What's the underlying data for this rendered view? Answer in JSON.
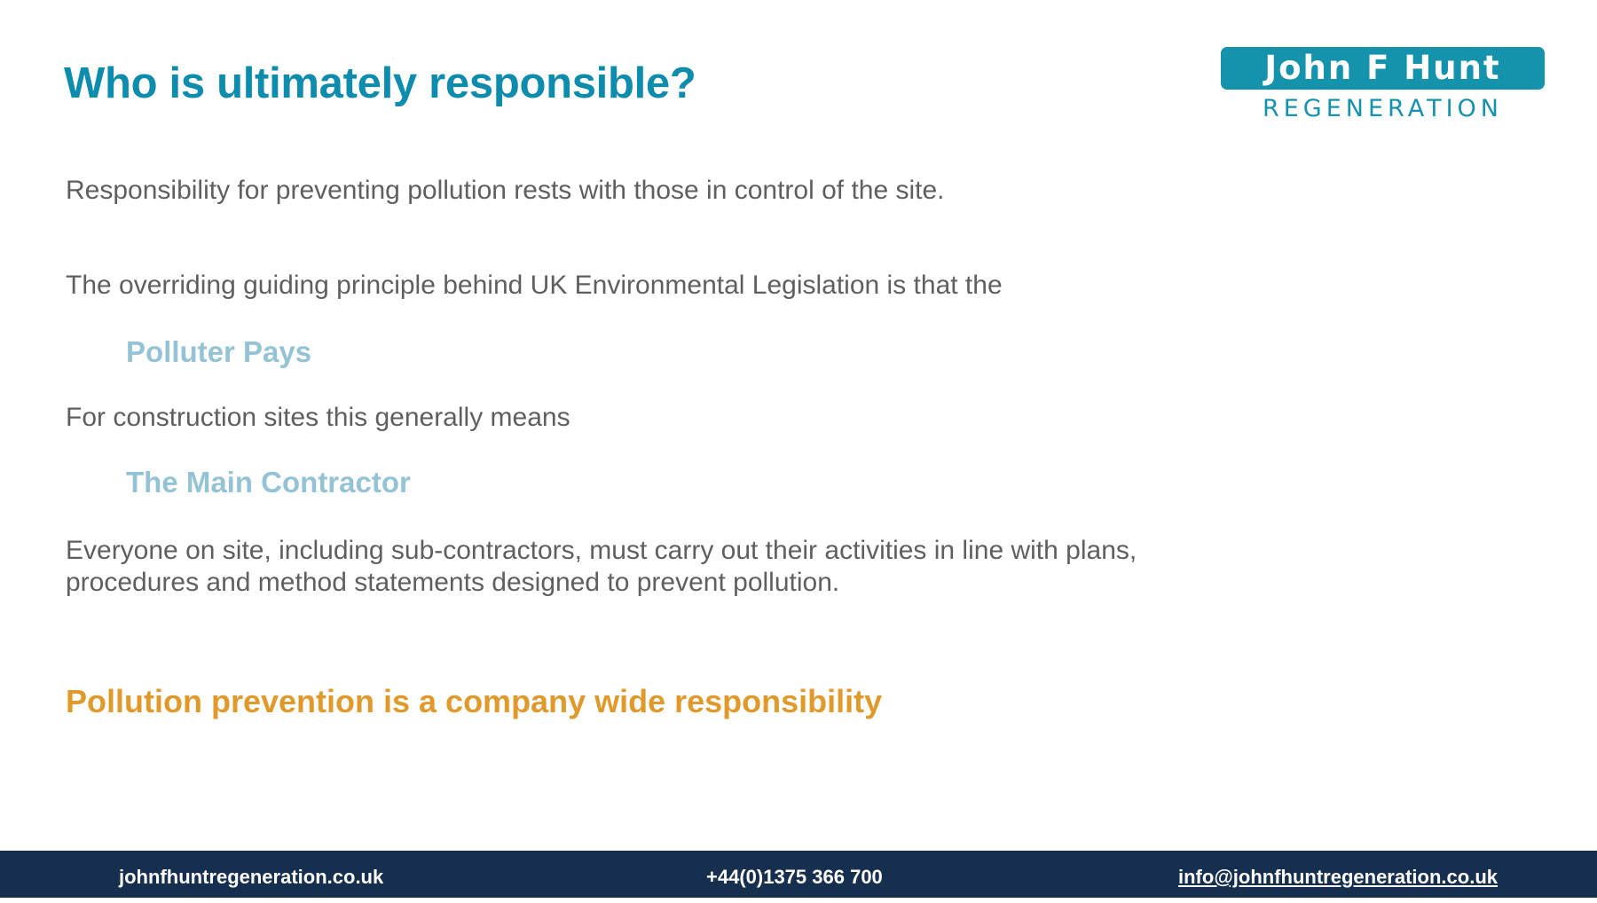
{
  "slide": {
    "title": "Who is ultimately responsible?"
  },
  "logo": {
    "line1": "John F Hunt",
    "line2": "REGENERATION"
  },
  "content": {
    "para1": "Responsibility for preventing pollution rests with those in control of the site.",
    "para2": "The overriding guiding principle behind UK Environmental Legislation is that the",
    "highlight1": "Polluter Pays",
    "para3": "For construction sites this generally means",
    "highlight2": "The Main Contractor",
    "para4": "Everyone on site, including sub-contractors, must carry out their activities in line with plans, procedures and method statements designed to prevent pollution.",
    "callout": "Pollution prevention is a company wide responsibility"
  },
  "footer": {
    "website": "johnfhuntregeneration.co.uk",
    "phone": "+44(0)1375 366 700",
    "email": "info@johnfhuntregeneration.co.uk"
  },
  "colors": {
    "title": "#0e8cae",
    "body_text": "#5f5f5f",
    "highlight": "#94c3d6",
    "callout": "#e09a2c",
    "footer_bg": "#172f4f",
    "logo": "#1592ac"
  }
}
